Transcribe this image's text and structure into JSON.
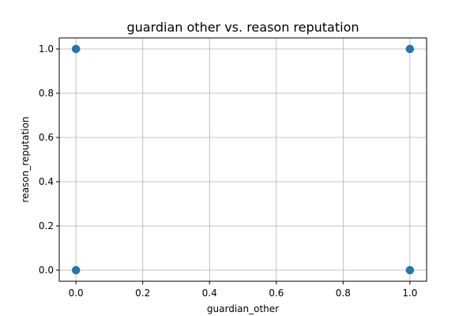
{
  "chart_data": {
    "type": "scatter",
    "title": "guardian other vs. reason reputation",
    "xlabel": "guardian_other",
    "ylabel": "reason_reputation",
    "xlim": [
      -0.05,
      1.05
    ],
    "ylim": [
      -0.05,
      1.05
    ],
    "xticks": [
      0.0,
      0.2,
      0.4,
      0.6,
      0.8,
      1.0
    ],
    "yticks": [
      0.0,
      0.2,
      0.4,
      0.6,
      0.8,
      1.0
    ],
    "xtick_labels": [
      "0.0",
      "0.2",
      "0.4",
      "0.6",
      "0.8",
      "1.0"
    ],
    "ytick_labels": [
      "0.0",
      "0.2",
      "0.4",
      "0.6",
      "0.8",
      "1.0"
    ],
    "grid": true,
    "marker_color": "#1f77b4",
    "points": [
      {
        "x": 0,
        "y": 0
      },
      {
        "x": 0,
        "y": 1
      },
      {
        "x": 1,
        "y": 0
      },
      {
        "x": 1,
        "y": 1
      }
    ]
  }
}
